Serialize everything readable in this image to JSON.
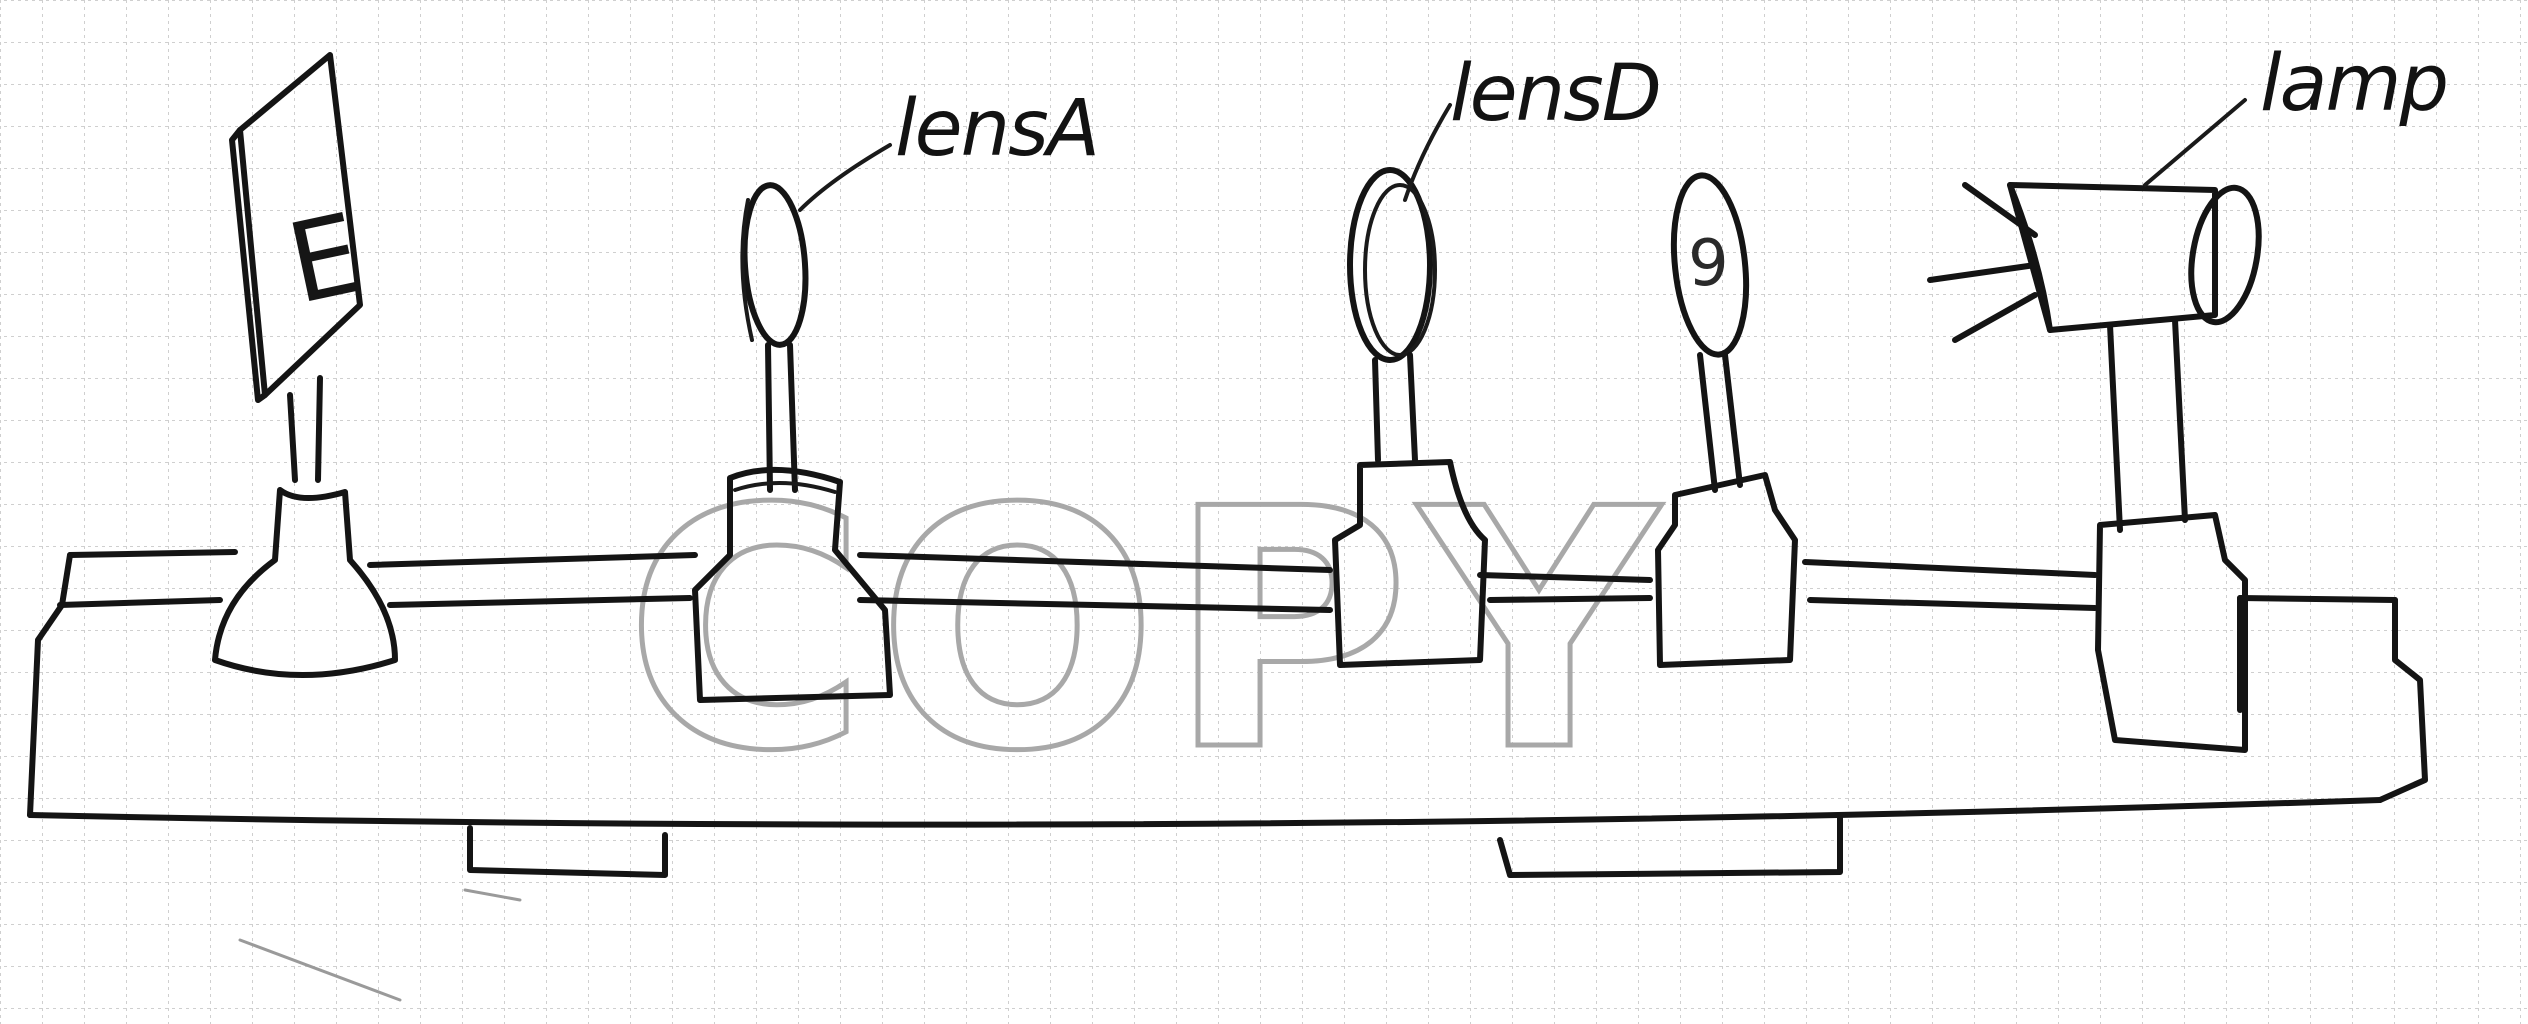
{
  "diagram": {
    "labels": {
      "lens_a": "lensA",
      "lens_d": "lensD",
      "lamp": "lamp"
    },
    "slide_mark": "E",
    "cylinder_mark": "9",
    "watermark": "COPY",
    "colors": {
      "paper": "#ffffff",
      "grid": "#cfcfcf",
      "ink": "#141414",
      "watermark": "#a8a8a8"
    }
  }
}
